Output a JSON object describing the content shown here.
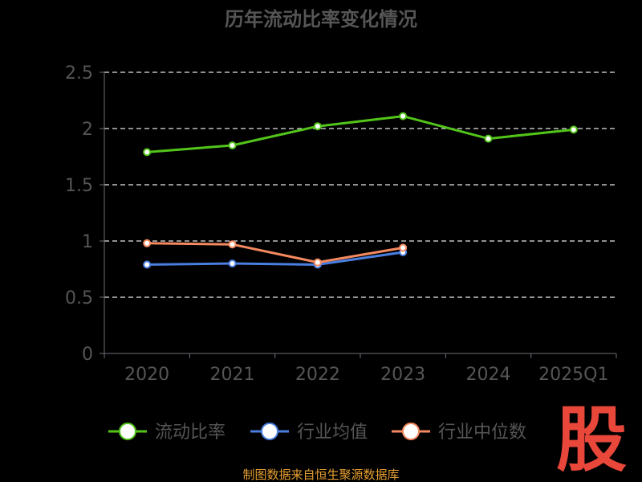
{
  "chart_data": {
    "type": "line",
    "title": "历年流动比率变化情况",
    "categories": [
      "2020",
      "2021",
      "2022",
      "2023",
      "2024",
      "2025Q1"
    ],
    "ylim": [
      0,
      2.5
    ],
    "yticks": [
      "0",
      "0.5",
      "1",
      "1.5",
      "2",
      "2.5"
    ],
    "grid": true,
    "legend_position": "bottom",
    "series": [
      {
        "name": "流动比率",
        "color": "#52c41a",
        "values": [
          1.79,
          1.85,
          2.02,
          2.11,
          1.91,
          1.99
        ]
      },
      {
        "name": "行业均值",
        "color": "#4a7fe0",
        "values": [
          0.79,
          0.8,
          0.79,
          0.9,
          null,
          null
        ]
      },
      {
        "name": "行业中位数",
        "color": "#f5895f",
        "values": [
          0.98,
          0.97,
          0.81,
          0.94,
          null,
          null
        ]
      }
    ]
  },
  "source_note": "制图数据来自恒生聚源数据库",
  "brand_mark": "股"
}
